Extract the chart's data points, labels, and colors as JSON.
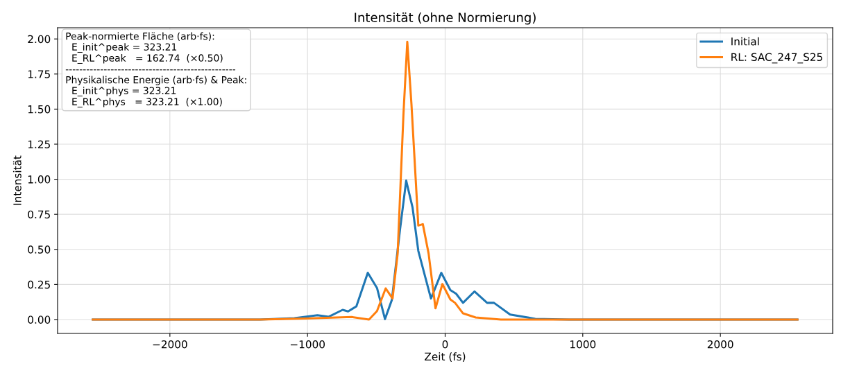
{
  "chart_data": {
    "type": "line",
    "title": "Intensität (ohne Normierung)",
    "xlabel": "Zeit (fs)",
    "ylabel": "Intensität",
    "xlim": [
      -2816,
      2816
    ],
    "ylim": [
      -0.099,
      2.08
    ],
    "xticks": [
      {
        "value": -2000,
        "label": "−2000"
      },
      {
        "value": -1000,
        "label": "−1000"
      },
      0,
      1000,
      2000
    ],
    "yticks": [
      {
        "value": 0,
        "label": "0.00"
      },
      {
        "value": 0.25,
        "label": "0.25"
      },
      {
        "value": 0.5,
        "label": "0.50"
      },
      {
        "value": 0.75,
        "label": "0.75"
      },
      {
        "value": 1.0,
        "label": "1.00"
      },
      {
        "value": 1.25,
        "label": "1.25"
      },
      {
        "value": 1.5,
        "label": "1.50"
      },
      {
        "value": 1.75,
        "label": "1.75"
      },
      {
        "value": 2.0,
        "label": "2.00"
      }
    ],
    "grid": true,
    "legend": "top right",
    "marker": "none",
    "line_style": "solid",
    "series": [
      {
        "name": "Initial",
        "color": "#1f77b4",
        "x": [
          -2560,
          -1345,
          -1095,
          -928,
          -845,
          -745,
          -705,
          -645,
          -562,
          -495,
          -437,
          -387,
          -328,
          -283,
          -237,
          -195,
          -103,
          -28,
          38,
          80,
          130,
          213,
          305,
          355,
          472,
          655,
          905,
          2560
        ],
        "values": [
          0,
          0,
          0.01,
          0.031,
          0.02,
          0.069,
          0.058,
          0.094,
          0.333,
          0.225,
          0.003,
          0.14,
          0.64,
          0.99,
          0.8,
          0.49,
          0.15,
          0.333,
          0.21,
          0.184,
          0.119,
          0.2,
          0.119,
          0.119,
          0.036,
          0.005,
          0,
          0
        ]
      },
      {
        "name": "RL: SAC_247_S25",
        "color": "#ff7f0e",
        "x": [
          -2560,
          -1345,
          -1012,
          -678,
          -553,
          -495,
          -432,
          -382,
          -345,
          -303,
          -275,
          -245,
          -195,
          -162,
          -120,
          -70,
          -20,
          38,
          72,
          130,
          222,
          405,
          2560
        ],
        "values": [
          0,
          0,
          0.007,
          0.018,
          0,
          0.06,
          0.222,
          0.15,
          0.47,
          1.46,
          1.98,
          1.54,
          0.67,
          0.68,
          0.47,
          0.08,
          0.253,
          0.143,
          0.119,
          0.044,
          0.015,
          0,
          0
        ]
      }
    ],
    "annotations": [
      "Peak-normierte Fläche (arb·fs):\n  E_init^peak = 323.21\n  E_RL^peak   = 162.74  (×0.50)\n-------------------------------------------------\nPhysikalische Energie (arb·fs) & Peak:\n  E_init^phys = 323.21\n  E_RL^phys   = 323.21  (×1.00)"
    ]
  }
}
